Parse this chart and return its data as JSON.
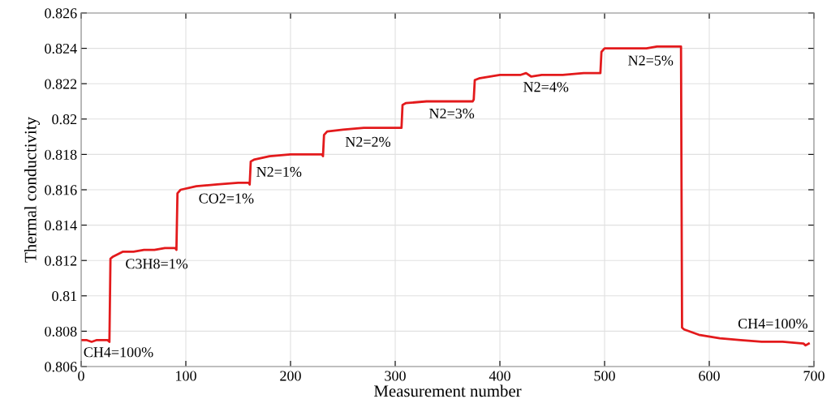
{
  "chart_data": {
    "type": "line",
    "xlabel": "Measurement number",
    "ylabel": "Thermal conductivity",
    "x": [
      0,
      5,
      10,
      15,
      20,
      25,
      27,
      28,
      30,
      40,
      50,
      60,
      70,
      80,
      90,
      91,
      92,
      95,
      110,
      130,
      150,
      160,
      161,
      162,
      165,
      180,
      200,
      220,
      230,
      231,
      232,
      235,
      250,
      270,
      290,
      305,
      306,
      307,
      310,
      330,
      350,
      374,
      375,
      376,
      380,
      400,
      420,
      425,
      430,
      440,
      460,
      480,
      494,
      496,
      497,
      500,
      520,
      540,
      550,
      560,
      572,
      573,
      574,
      576,
      590,
      610,
      630,
      650,
      670,
      690,
      692,
      695
    ],
    "series": [
      {
        "color": "#e31a1c",
        "values": [
          0.8075,
          0.8075,
          0.8074,
          0.8075,
          0.8075,
          0.8075,
          0.8074,
          0.8121,
          0.8122,
          0.8125,
          0.8125,
          0.8126,
          0.8126,
          0.8127,
          0.8127,
          0.8126,
          0.8158,
          0.816,
          0.8162,
          0.8163,
          0.8164,
          0.8164,
          0.8163,
          0.8176,
          0.8177,
          0.8179,
          0.818,
          0.818,
          0.818,
          0.8179,
          0.8191,
          0.8193,
          0.8194,
          0.8195,
          0.8195,
          0.8195,
          0.8195,
          0.8208,
          0.8209,
          0.821,
          0.821,
          0.821,
          0.8211,
          0.8222,
          0.8223,
          0.8225,
          0.8225,
          0.8226,
          0.8224,
          0.8225,
          0.8225,
          0.8226,
          0.8226,
          0.8226,
          0.8238,
          0.824,
          0.824,
          0.824,
          0.8241,
          0.8241,
          0.8241,
          0.8241,
          0.8082,
          0.8081,
          0.8078,
          0.8076,
          0.8075,
          0.8074,
          0.8074,
          0.8073,
          0.8072,
          0.8073
        ]
      }
    ],
    "xlim": [
      0,
      700
    ],
    "xticks": [
      0,
      100,
      200,
      300,
      400,
      500,
      600,
      700
    ],
    "ylim": [
      0.806,
      0.826
    ],
    "yticks": [
      0.806,
      0.808,
      0.81,
      0.812,
      0.814,
      0.816,
      0.818,
      0.82,
      0.822,
      0.824,
      0.826
    ],
    "grid": true,
    "marker": "none",
    "line_style": "solid",
    "annotations": [
      {
        "text": "CH4=100%",
        "x": 0,
        "y": 0.8075
      },
      {
        "text": "C3H8=1%",
        "x": 40,
        "y": 0.8125
      },
      {
        "text": "CO2=1%",
        "x": 110,
        "y": 0.8162
      },
      {
        "text": "N2=1%",
        "x": 165,
        "y": 0.8177
      },
      {
        "text": "N2=2%",
        "x": 250,
        "y": 0.8194
      },
      {
        "text": "N2=3%",
        "x": 330,
        "y": 0.821
      },
      {
        "text": "N2=4%",
        "x": 420,
        "y": 0.8225
      },
      {
        "text": "N2=5%",
        "x": 520,
        "y": 0.824
      },
      {
        "text": "CH4=100%",
        "x": 610,
        "y": 0.8076
      }
    ]
  }
}
